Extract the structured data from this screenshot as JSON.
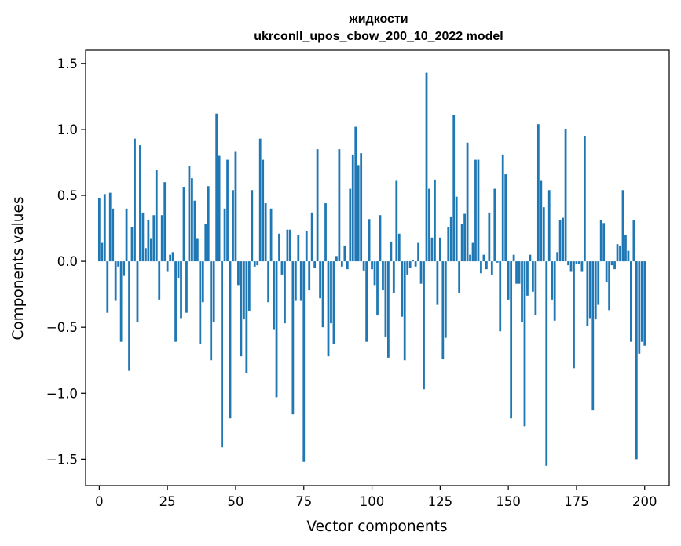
{
  "chart_data": {
    "type": "bar",
    "title_line1": "жидкости",
    "title_line2": "ukrconll_upos_cbow_200_10_2022 model",
    "xlabel": "Vector components",
    "ylabel": "Components values",
    "xlim": [
      -5,
      209
    ],
    "ylim": [
      -1.7,
      1.6
    ],
    "xticks": [
      0,
      25,
      50,
      75,
      100,
      125,
      150,
      175,
      200
    ],
    "xtick_labels": [
      "0",
      "25",
      "50",
      "75",
      "100",
      "125",
      "150",
      "175",
      "200"
    ],
    "yticks": [
      -1.5,
      -1.0,
      -0.5,
      0.0,
      0.5,
      1.0,
      1.5
    ],
    "ytick_labels": [
      "−1.5",
      "−1.0",
      "−0.5",
      "0.0",
      "0.5",
      "1.0",
      "1.5"
    ],
    "grid": false,
    "bar_color": "#1f77b4",
    "values": [
      0.48,
      0.14,
      0.51,
      -0.39,
      0.52,
      0.4,
      -0.3,
      -0.04,
      -0.61,
      -0.11,
      0.4,
      -0.83,
      0.26,
      0.93,
      -0.46,
      0.88,
      0.37,
      0.1,
      0.31,
      0.17,
      0.35,
      0.69,
      -0.29,
      0.35,
      0.6,
      -0.08,
      0.05,
      0.07,
      -0.61,
      -0.13,
      -0.43,
      0.56,
      -0.39,
      0.72,
      0.63,
      0.46,
      0.17,
      -0.63,
      -0.31,
      0.28,
      0.57,
      -0.75,
      -0.46,
      1.12,
      0.8,
      -1.41,
      0.4,
      0.77,
      -1.19,
      0.54,
      0.83,
      -0.18,
      -0.72,
      -0.44,
      -0.85,
      -0.38,
      0.54,
      -0.04,
      -0.03,
      0.93,
      0.77,
      0.44,
      -0.31,
      0.4,
      -0.52,
      -1.03,
      0.21,
      -0.1,
      -0.47,
      0.24,
      0.24,
      -1.16,
      -0.3,
      0.2,
      -0.3,
      -1.52,
      0.23,
      -0.22,
      0.37,
      -0.05,
      0.85,
      -0.28,
      -0.5,
      0.44,
      -0.72,
      -0.47,
      -0.63,
      0.04,
      0.85,
      -0.04,
      0.12,
      -0.06,
      0.55,
      0.81,
      1.02,
      0.73,
      0.82,
      -0.07,
      -0.61,
      0.32,
      -0.06,
      -0.18,
      -0.41,
      0.35,
      -0.22,
      -0.57,
      -0.73,
      0.15,
      -0.24,
      0.61,
      0.21,
      -0.42,
      -0.75,
      -0.1,
      -0.05,
      0.01,
      -0.04,
      0.14,
      -0.17,
      -0.97,
      1.43,
      0.55,
      0.18,
      0.62,
      -0.33,
      0.18,
      -0.74,
      -0.58,
      0.26,
      0.34,
      1.11,
      0.49,
      -0.24,
      0.28,
      0.36,
      0.9,
      0.05,
      0.14,
      0.77,
      0.77,
      -0.09,
      0.05,
      -0.06,
      0.37,
      -0.1,
      0.55,
      -0.01,
      -0.53,
      0.81,
      0.66,
      -0.29,
      -1.19,
      0.05,
      -0.17,
      -0.17,
      -0.46,
      -1.25,
      -0.26,
      0.05,
      -0.23,
      -0.41,
      1.04,
      0.61,
      0.41,
      -1.55,
      0.54,
      -0.29,
      -0.45,
      0.07,
      0.31,
      0.33,
      1.0,
      -0.03,
      -0.08,
      -0.81,
      -0.02,
      -0.02,
      -0.08,
      0.95,
      -0.49,
      -0.43,
      -1.13,
      -0.44,
      -0.33,
      0.31,
      0.29,
      -0.16,
      -0.37,
      -0.03,
      -0.06,
      0.13,
      0.12,
      0.54,
      0.2,
      0.08,
      -0.61,
      0.31,
      -1.5,
      -0.7,
      -0.61,
      -0.64
    ]
  }
}
